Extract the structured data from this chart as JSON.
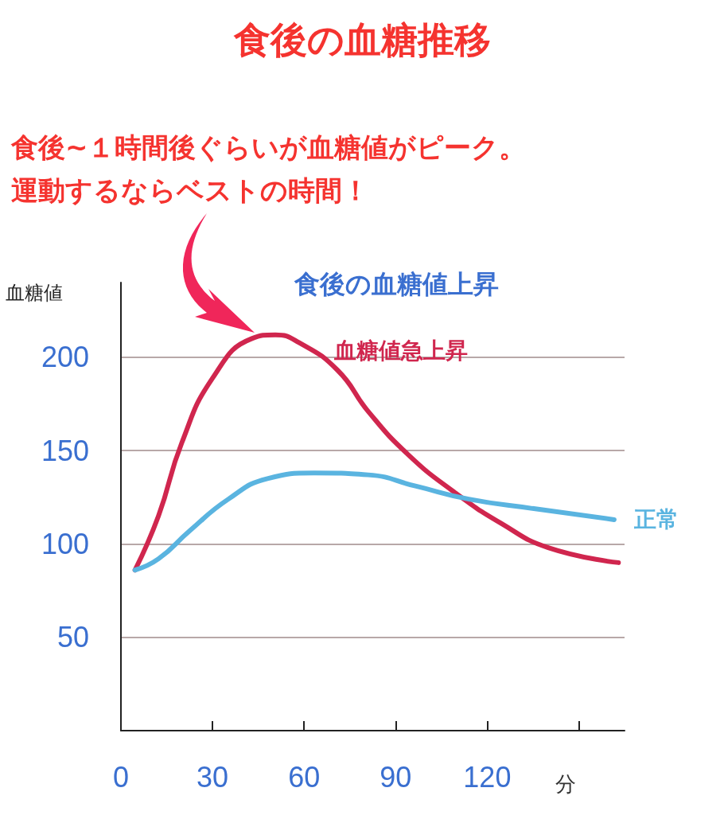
{
  "chart_data": {
    "type": "line",
    "title": "食後の血糖推移",
    "ylabel": "血糖値",
    "xlabel": "分",
    "annotations": [
      "食後~１時間後ぐらいが血糖値がピーク。",
      "運動するならベストの時間！",
      "食後の血糖値上昇"
    ],
    "series": [
      {
        "name": "血糖値急上昇",
        "color": "#d0264e",
        "x": [
          4.6,
          12.3,
          19.9,
          30.1,
          42.9,
          50.6,
          58.2,
          71,
          81,
          94,
          109,
          124.6,
          140,
          163
        ],
        "values": [
          86,
          115,
          154,
          189,
          210,
          212,
          208,
          193,
          171,
          148,
          128,
          111,
          98,
          90
        ]
      },
      {
        "name": "正常",
        "color": "#5ab4e0",
        "x": [
          4.6,
          12.3,
          22.5,
          35.2,
          48,
          63.3,
          81,
          96.5,
          114,
          134.8,
          161.6
        ],
        "values": [
          86,
          92,
          107,
          124,
          135,
          138,
          137,
          131,
          124,
          119,
          113
        ]
      }
    ],
    "xlim": [
      0,
      165
    ],
    "xticks": [
      0,
      30,
      60,
      90,
      120,
      {
        "value": 150,
        "label": null
      }
    ],
    "ylim": [
      0,
      240
    ],
    "yticks": [
      50,
      100,
      150,
      200
    ],
    "grid": "y",
    "marker": "none",
    "line_style": "solid"
  }
}
